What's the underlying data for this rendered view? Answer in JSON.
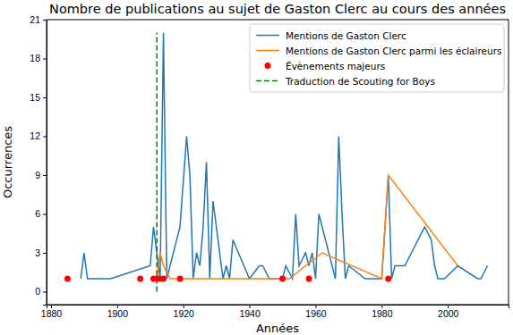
{
  "chart_data": {
    "type": "line",
    "title": "Nombre de publications au sujet de Gaston Clerc au cours des années",
    "x_label": "Années",
    "y_label": "Occurrences",
    "xlim": [
      1878.65,
      2018.35
    ],
    "xticks": [
      1880,
      1900,
      1920,
      1940,
      1960,
      1980,
      2000
    ],
    "ylim": [
      -1,
      21
    ],
    "yticks": [
      0,
      3,
      6,
      9,
      12,
      15,
      18,
      21
    ],
    "grid": false,
    "legend": "upper right",
    "series": [
      {
        "name": "Mentions de Gaston Clerc",
        "type": "line",
        "color": "#1f77b4",
        "line_style": "solid",
        "x": [
          1889,
          1890,
          1891,
          1898,
          1910,
          1911,
          1912,
          1913,
          1914,
          1915,
          1919,
          1921,
          1922,
          1923,
          1924,
          1925,
          1926,
          1927,
          1928,
          1929,
          1930,
          1932,
          1933,
          1934,
          1935,
          1940,
          1943,
          1944,
          1946,
          1950,
          1951,
          1953,
          1954,
          1955,
          1957,
          1958,
          1959,
          1960,
          1961,
          1963,
          1965,
          1966,
          1967,
          1968,
          1969,
          1970,
          1975,
          1977,
          1980,
          1982,
          1983,
          1984,
          1987,
          1993,
          1995,
          1996,
          1997,
          1999,
          2003,
          2009,
          2010,
          2012
        ],
        "values": [
          1,
          3,
          1,
          1,
          2,
          5,
          3,
          1,
          20,
          1,
          5,
          12,
          9,
          1,
          3,
          2,
          5,
          10,
          1,
          7,
          5,
          1,
          2,
          1,
          4,
          1,
          2,
          2,
          1,
          1,
          2,
          1,
          6,
          2,
          3,
          2,
          3,
          1,
          6,
          4,
          2,
          1,
          12,
          6,
          1,
          2,
          1,
          1,
          1,
          9,
          1,
          2,
          2,
          5,
          4,
          2,
          1,
          1,
          2,
          1,
          1,
          2
        ]
      },
      {
        "name": "Mentions de Gaston Clerc parmi les éclaireurs",
        "type": "line",
        "color": "#ff7f0e",
        "line_style": "solid",
        "x": [
          1912,
          1913,
          1914,
          1916,
          1930,
          1950,
          1952,
          1962,
          1980,
          1982,
          2003
        ],
        "values": [
          1,
          3,
          2,
          1,
          1,
          1,
          1,
          3,
          1,
          9,
          2
        ]
      },
      {
        "name": "Évènements majeurs",
        "type": "scatter",
        "color": "#ff0000",
        "marker": "circle",
        "x": [
          1885,
          1907,
          1911,
          1912,
          1913,
          1914,
          1919,
          1950,
          1958,
          1982
        ],
        "values": [
          1,
          1,
          1,
          1,
          1,
          1,
          1,
          1,
          1,
          1
        ]
      },
      {
        "name": "Traduction de Scouting for Boys",
        "type": "line",
        "color": "#008000",
        "line_style": "dashed",
        "x": [
          1912,
          1912
        ],
        "values": [
          0,
          20
        ]
      }
    ]
  }
}
